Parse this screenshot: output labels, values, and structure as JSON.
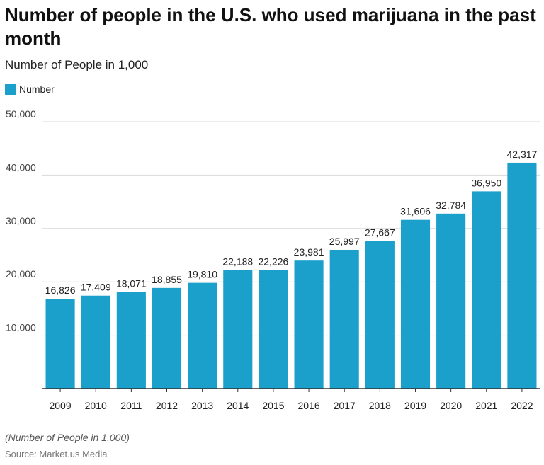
{
  "title": "Number of people in the U.S. who used marijuana in the past month",
  "subtitle": "Number of People in 1,000",
  "note": "(Number of People in 1,000)",
  "source": "Source: Market.us Media",
  "colors": {
    "bar": "#1aa0cb",
    "grid": "#d9d9d9",
    "axis": "#333333"
  },
  "chart_data": {
    "type": "bar",
    "title": "Number of people in the U.S. who used marijuana in the past month",
    "subtitle": "Number of People in 1,000",
    "xlabel": "",
    "ylabel": "",
    "ylim": [
      0,
      50000
    ],
    "yticks": [
      10000,
      20000,
      30000,
      40000,
      50000
    ],
    "ytick_labels": [
      "10,000",
      "20,000",
      "30,000",
      "40,000",
      "50,000"
    ],
    "grid": true,
    "legend": "top-left",
    "categories": [
      "2009",
      "2010",
      "2011",
      "2012",
      "2013",
      "2014",
      "2015",
      "2016",
      "2017",
      "2018",
      "2019",
      "2020",
      "2021",
      "2022"
    ],
    "series": [
      {
        "name": "Number",
        "values": [
          16826,
          17409,
          18071,
          18855,
          19810,
          22188,
          22226,
          23981,
          25997,
          27667,
          31606,
          32784,
          36950,
          42317
        ],
        "labels": [
          "16,826",
          "17,409",
          "18,071",
          "18,855",
          "19,810",
          "22,188",
          "22,226",
          "23,981",
          "25,997",
          "27,667",
          "31,606",
          "32,784",
          "36,950",
          "42,317"
        ]
      }
    ]
  }
}
